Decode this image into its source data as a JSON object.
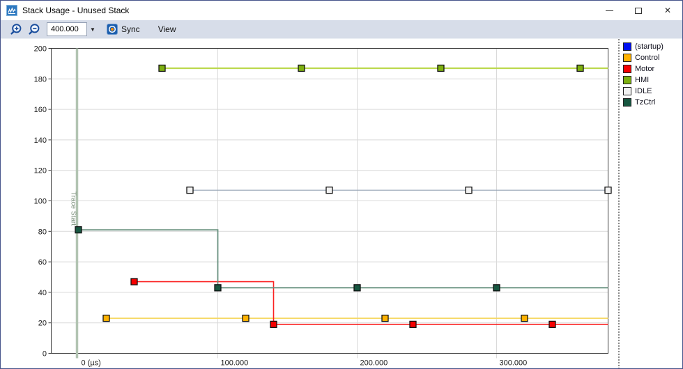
{
  "window": {
    "title": "Stack Usage - Unused Stack"
  },
  "icons": {
    "app_icon": "waveform-chart",
    "zoom_in": "magnifier-plus",
    "zoom_out": "magnifier-minus",
    "sync": "sync-target",
    "combo_arrow_glyph": "▼",
    "minimize": "minimize-dash",
    "maximize": "maximize-square",
    "close_glyph": "✕"
  },
  "toolbar": {
    "interval_value": "400.000",
    "sync_label": "Sync",
    "view_label": "View"
  },
  "legend": {
    "items": [
      {
        "label": "(startup)",
        "color": "#0010f0"
      },
      {
        "label": "Control",
        "color": "#ffb200"
      },
      {
        "label": "Motor",
        "color": "#f50000"
      },
      {
        "label": "HMI",
        "color": "#7db010"
      },
      {
        "label": "IDLE",
        "color": "#f2f2f2"
      },
      {
        "label": "TzCtrl",
        "color": "#175640"
      }
    ]
  },
  "chart_data": {
    "type": "line",
    "subtype": "step",
    "x_unit": "µs",
    "ylim": [
      0,
      200
    ],
    "y_tick_step": 20,
    "x_view_end": 380,
    "grid": true,
    "legend_position": "right-panel",
    "x_ticks": [
      {
        "t": 0,
        "label": "0 (µs)"
      },
      {
        "t": 100,
        "label": "100.000"
      },
      {
        "t": 200,
        "label": "200.000"
      },
      {
        "t": 300,
        "label": "300.000"
      }
    ],
    "trace_start": {
      "t": -1,
      "label": "Trace Start",
      "line_color": "#b2c4b2",
      "text_color": "#7f937f"
    },
    "series": [
      {
        "name": "(startup)",
        "line_color": "#2020f0",
        "marker_color": "#0010f0",
        "line_width": 1.6,
        "points": []
      },
      {
        "name": "Control",
        "line_color": "#f6d865",
        "marker_color": "#ffb200",
        "line_width": 1.8,
        "points": [
          [
            20,
            23
          ],
          [
            120,
            23
          ],
          [
            220,
            23
          ],
          [
            320,
            23
          ]
        ]
      },
      {
        "name": "Motor",
        "line_color": "#fb2020",
        "marker_color": "#f50000",
        "line_width": 1.6,
        "points": [
          [
            40,
            47
          ],
          [
            140,
            19
          ],
          [
            240,
            19
          ],
          [
            340,
            19
          ]
        ]
      },
      {
        "name": "HMI",
        "line_color": "#bcd94e",
        "marker_color": "#7db010",
        "line_width": 2.2,
        "points": [
          [
            60,
            187
          ],
          [
            160,
            187
          ],
          [
            260,
            187
          ],
          [
            360,
            187
          ]
        ]
      },
      {
        "name": "IDLE",
        "line_color": "#93a2b4",
        "marker_color": "#f2f2f2",
        "line_width": 1.1,
        "points": [
          [
            80,
            107
          ],
          [
            180,
            107
          ],
          [
            280,
            107
          ],
          [
            380,
            107
          ]
        ]
      },
      {
        "name": "TzCtrl",
        "line_color": "#68917f",
        "marker_color": "#175640",
        "line_width": 1.8,
        "points": [
          [
            0,
            81
          ],
          [
            100,
            43
          ],
          [
            200,
            43
          ],
          [
            300,
            43
          ]
        ]
      }
    ]
  }
}
